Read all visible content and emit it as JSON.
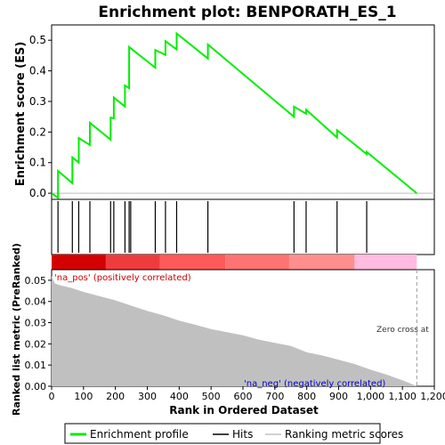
{
  "chart_data": {
    "type": "line",
    "title": "Enrichment plot: BENPORATH_ES_1",
    "es_panel": {
      "ylabel": "Enrichment score (ES)",
      "ylim": [
        -0.02,
        0.55
      ],
      "yticks": [
        "0.0",
        "0.1",
        "0.2",
        "0.3",
        "0.4",
        "0.5"
      ],
      "ytick_values": [
        0.0,
        0.1,
        0.2,
        0.3,
        0.4,
        0.5
      ],
      "series": [
        {
          "name": "Enrichment profile",
          "color": "#00ee00",
          "x": [
            0,
            20,
            20,
            65,
            65,
            85,
            85,
            120,
            120,
            185,
            185,
            195,
            195,
            230,
            230,
            243,
            243,
            325,
            325,
            357,
            357,
            392,
            392,
            490,
            490,
            760,
            760,
            798,
            798,
            895,
            895,
            988,
            988,
            1145
          ],
          "y": [
            0.0,
            -0.015,
            0.073,
            0.033,
            0.117,
            0.1,
            0.18,
            0.158,
            0.23,
            0.175,
            0.247,
            0.245,
            0.313,
            0.283,
            0.352,
            0.343,
            0.478,
            0.41,
            0.468,
            0.452,
            0.497,
            0.47,
            0.522,
            0.44,
            0.486,
            0.25,
            0.283,
            0.26,
            0.273,
            0.182,
            0.206,
            0.128,
            0.135,
            0.0
          ]
        }
      ]
    },
    "hits_panel": {
      "hit_positions": [
        20,
        65,
        85,
        120,
        185,
        195,
        230,
        243,
        248,
        325,
        357,
        392,
        490,
        760,
        798,
        895,
        988
      ]
    },
    "colorbar": {
      "segments": [
        {
          "from": 0,
          "to": 170,
          "color": "#d40000"
        },
        {
          "from": 170,
          "to": 340,
          "color": "#ee3c3c"
        },
        {
          "from": 340,
          "to": 545,
          "color": "#ff5a5a"
        },
        {
          "from": 545,
          "to": 745,
          "color": "#ff7373"
        },
        {
          "from": 745,
          "to": 950,
          "color": "#ff8f8f"
        },
        {
          "from": 950,
          "to": 1145,
          "color": "#ffbbe0"
        }
      ]
    },
    "metric_panel": {
      "ylabel": "Ranked list metric (PreRanked)",
      "ylim": [
        0,
        0.055
      ],
      "yticks": [
        "0.00",
        "0.01",
        "0.02",
        "0.03",
        "0.04",
        "0.05"
      ],
      "ytick_values": [
        0.0,
        0.01,
        0.02,
        0.03,
        0.04,
        0.05
      ],
      "fill_color": "#c0c0c0",
      "curve": {
        "x": [
          0,
          10,
          30,
          60,
          100,
          150,
          200,
          250,
          300,
          350,
          400,
          450,
          500,
          550,
          600,
          650,
          700,
          750,
          800,
          850,
          900,
          950,
          1000,
          1050,
          1100,
          1130,
          1145
        ],
        "y": [
          0.052,
          0.0485,
          0.0475,
          0.0465,
          0.0445,
          0.0425,
          0.0405,
          0.038,
          0.0355,
          0.0335,
          0.031,
          0.029,
          0.027,
          0.0255,
          0.024,
          0.022,
          0.0205,
          0.019,
          0.016,
          0.0145,
          0.0125,
          0.0105,
          0.0078,
          0.0055,
          0.0028,
          0.001,
          0.0
        ]
      },
      "pos_label": "'na_pos' (positively correlated)",
      "neg_label": "'na_neg' (negatively correlated)",
      "zero_cross_label": "Zero cross at",
      "zero_cross_x": 1145
    },
    "xlabel": "Rank in Ordered Dataset",
    "xlim": [
      0,
      1200
    ],
    "xticks": [
      "0",
      "100",
      "200",
      "300",
      "400",
      "500",
      "600",
      "700",
      "800",
      "900",
      "1,000",
      "1,100",
      "1,200"
    ],
    "xtick_values": [
      0,
      100,
      200,
      300,
      400,
      500,
      600,
      700,
      800,
      900,
      1000,
      1100,
      1200
    ],
    "legend": {
      "placement": "bottom",
      "entries": [
        {
          "label": "Enrichment profile",
          "color": "#00ee00"
        },
        {
          "label": "Hits",
          "color": "#000000"
        },
        {
          "label": "Ranking metric scores",
          "color": "#c0c0c0"
        }
      ]
    }
  }
}
